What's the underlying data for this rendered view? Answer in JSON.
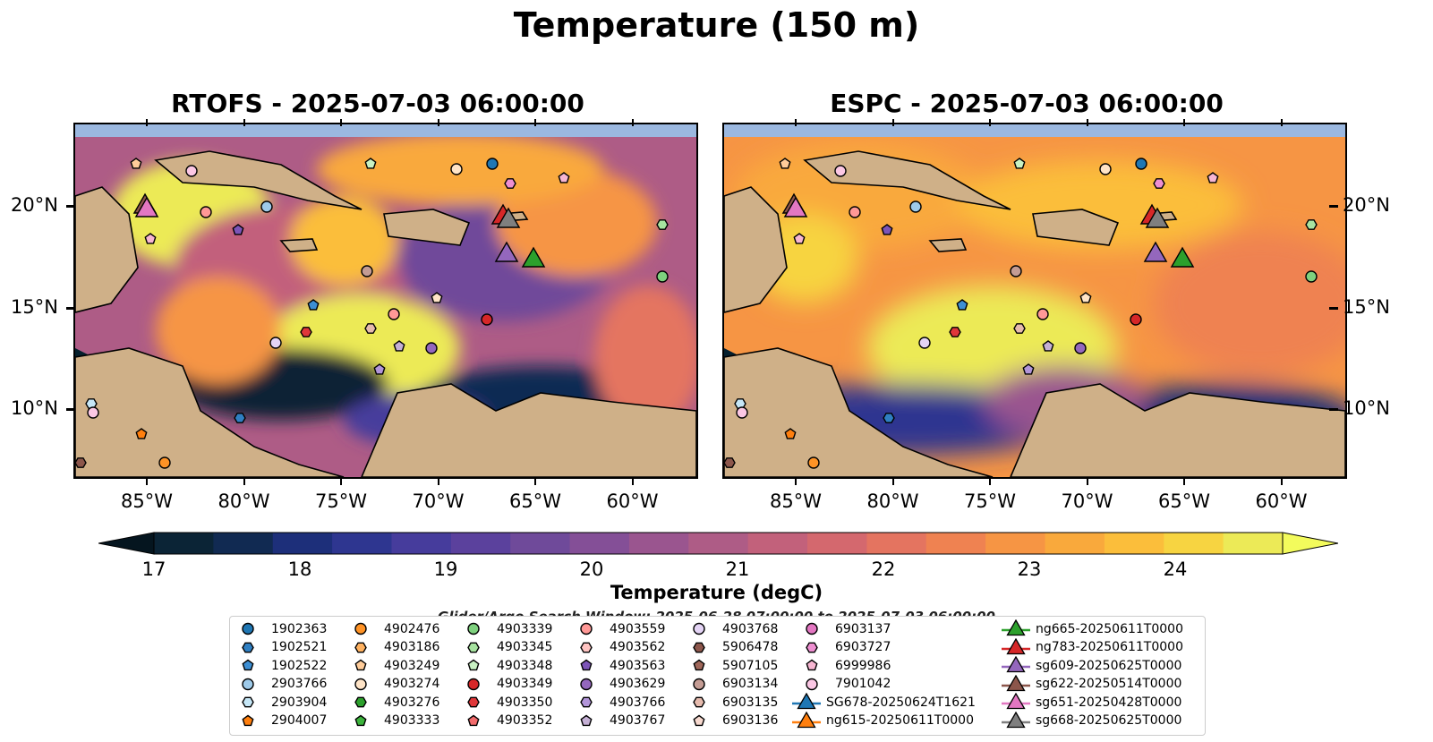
{
  "figure": {
    "suptitle": "Temperature (150 m)",
    "panels": [
      {
        "title": "RTOFS - 2025-07-03 06:00:00"
      },
      {
        "title": "ESPC - 2025-07-03 06:00:00"
      }
    ],
    "x_ticks": [
      "85°W",
      "80°W",
      "75°W",
      "70°W",
      "65°W",
      "60°W"
    ],
    "y_ticks": [
      "20°N",
      "15°N",
      "10°N"
    ],
    "colorbar": {
      "label": "Temperature (degC)",
      "ticks": [
        "17",
        "18",
        "19",
        "20",
        "21",
        "22",
        "23",
        "24"
      ],
      "colors": [
        "#0b2436",
        "#112a52",
        "#1d2f7a",
        "#2e3690",
        "#463c9c",
        "#5b419d",
        "#6f4a9a",
        "#844f97",
        "#9a558f",
        "#ae5c86",
        "#c2617b",
        "#d4686e",
        "#e47460",
        "#ef8251",
        "#f69544",
        "#f9a93c",
        "#fbbe3b",
        "#f7d441",
        "#ecea57"
      ],
      "under_color": "#05151f",
      "over_color": "#f3fb5c"
    },
    "search_window": "Glider/Argo Search Window: 2025-06-28 07:00:00 to 2025-07-03 06:00:00",
    "map_colors": {
      "land": "#cfb088",
      "ocean_shallow": "#9bb8e0",
      "deep": "#05202e"
    }
  },
  "legend": {
    "argo": [
      {
        "label": "1902363",
        "marker": "circle",
        "color": "#1f77b4"
      },
      {
        "label": "1902521",
        "marker": "hexagon",
        "color": "#2f7fc2"
      },
      {
        "label": "1902522",
        "marker": "pentagon",
        "color": "#3d8fd4"
      },
      {
        "label": "2903766",
        "marker": "circle",
        "color": "#9ecae9"
      },
      {
        "label": "2903904",
        "marker": "hexagon",
        "color": "#c6e7f7"
      },
      {
        "label": "2904007",
        "marker": "pentagon",
        "color": "#ff7f0e"
      },
      {
        "label": "4902476",
        "marker": "circle",
        "color": "#ff9326"
      },
      {
        "label": "4903186",
        "marker": "hexagon",
        "color": "#ffb261"
      },
      {
        "label": "4903249",
        "marker": "pentagon",
        "color": "#ffcc99"
      },
      {
        "label": "4903274",
        "marker": "circle",
        "color": "#ffe4c7"
      },
      {
        "label": "4903276",
        "marker": "hexagon",
        "color": "#2ca02c"
      },
      {
        "label": "4903333",
        "marker": "pentagon",
        "color": "#3cb33c"
      },
      {
        "label": "4903339",
        "marker": "circle",
        "color": "#7ed17e"
      },
      {
        "label": "4903345",
        "marker": "hexagon",
        "color": "#a7e3a0"
      },
      {
        "label": "4903348",
        "marker": "pentagon",
        "color": "#c9f2c3"
      },
      {
        "label": "4903349",
        "marker": "circle",
        "color": "#d62728"
      },
      {
        "label": "4903350",
        "marker": "hexagon",
        "color": "#e0383a"
      },
      {
        "label": "4903352",
        "marker": "pentagon",
        "color": "#f26b6c"
      },
      {
        "label": "4903559",
        "marker": "circle",
        "color": "#ff9896"
      },
      {
        "label": "4903562",
        "marker": "hexagon",
        "color": "#ffc4c2"
      },
      {
        "label": "4903563",
        "marker": "pentagon",
        "color": "#7d55b8"
      },
      {
        "label": "4903629",
        "marker": "circle",
        "color": "#9467bd"
      },
      {
        "label": "4903766",
        "marker": "hexagon",
        "color": "#b295d9"
      },
      {
        "label": "4903767",
        "marker": "pentagon",
        "color": "#c5b0d5"
      },
      {
        "label": "4903768",
        "marker": "circle",
        "color": "#e4d4f5"
      },
      {
        "label": "5906478",
        "marker": "hexagon",
        "color": "#8c564b"
      },
      {
        "label": "5907105",
        "marker": "pentagon",
        "color": "#a0675a"
      },
      {
        "label": "6903134",
        "marker": "circle",
        "color": "#c49c94"
      },
      {
        "label": "6903135",
        "marker": "hexagon",
        "color": "#e6bbae"
      },
      {
        "label": "6903136",
        "marker": "pentagon",
        "color": "#f7d9cf"
      },
      {
        "label": "6903137",
        "marker": "circle",
        "color": "#e377c2"
      },
      {
        "label": "6903727",
        "marker": "hexagon",
        "color": "#ee8fd1"
      },
      {
        "label": "6999986",
        "marker": "pentagon",
        "color": "#f7b6d2"
      },
      {
        "label": "7901042",
        "marker": "circle",
        "color": "#fbc7e4"
      }
    ],
    "gliders": [
      {
        "label": "SG678-20250624T1621",
        "color": "#1f77b4"
      },
      {
        "label": "ng615-20250611T0000",
        "color": "#ff7f0e"
      },
      {
        "label": "ng665-20250611T0000",
        "color": "#2ca02c"
      },
      {
        "label": "ng783-20250611T0000",
        "color": "#d62728"
      },
      {
        "label": "sg609-20250625T0000",
        "color": "#9467bd"
      },
      {
        "label": "sg622-20250514T0000",
        "color": "#8c564b"
      },
      {
        "label": "sg651-20250428T0000",
        "color": "#e377c2"
      },
      {
        "label": "sg668-20250625T0000",
        "color": "#7f7f7f"
      }
    ]
  }
}
